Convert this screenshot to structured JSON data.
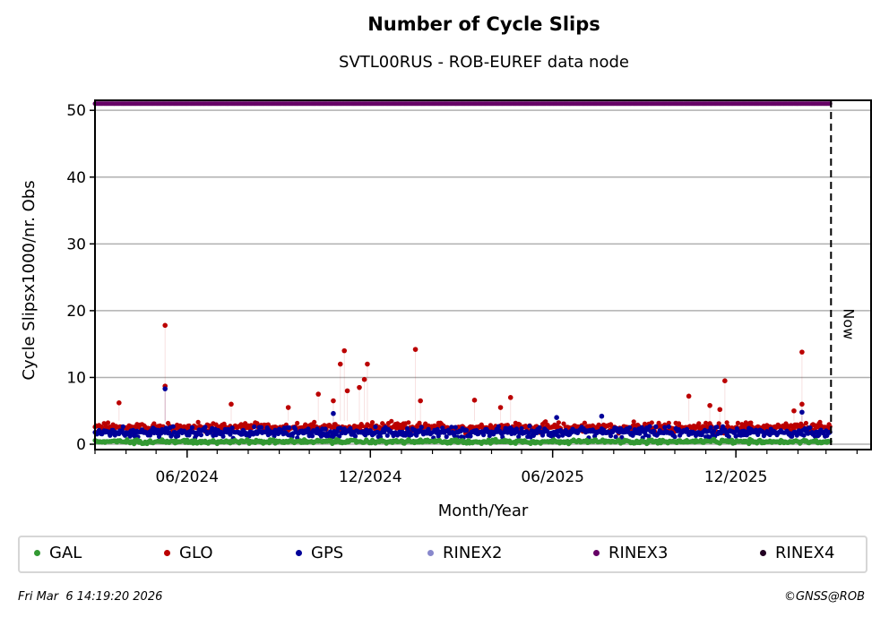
{
  "chart_data": {
    "type": "scatter",
    "title": "Number of Cycle Slips",
    "subtitle": "SVTL00RUS - ROB-EUREF data node",
    "xlabel": "Month/Year",
    "ylabel": "Cycle Slipsx1000/nr. Obs",
    "x_range": [
      "2024-03-01",
      "2026-04-15"
    ],
    "ylim": [
      -0.8,
      51.5
    ],
    "y_ticks": [
      0,
      10,
      20,
      30,
      40,
      50
    ],
    "x_ticks": [
      {
        "date": "2024-06-01",
        "label": "06/2024"
      },
      {
        "date": "2024-12-01",
        "label": "12/2024"
      },
      {
        "date": "2025-06-01",
        "label": "06/2025"
      },
      {
        "date": "2025-12-01",
        "label": "12/2025"
      }
    ],
    "grid": "horizontal",
    "legend_placement": "bottom",
    "now_marker": {
      "date": "2026-03-06",
      "label": "Now"
    },
    "series": [
      {
        "name": "GAL",
        "color": "#339933",
        "typical_range": [
          0.0,
          0.8
        ],
        "data_start": "2024-03-01",
        "data_end": "2026-03-05",
        "outliers": []
      },
      {
        "name": "GLO",
        "color": "#bb0000",
        "typical_range": [
          1.5,
          3.5
        ],
        "data_start": "2024-03-01",
        "data_end": "2026-03-05",
        "outliers": [
          {
            "date": "2024-03-25",
            "value": 6.2
          },
          {
            "date": "2024-05-10",
            "value": 17.8
          },
          {
            "date": "2024-05-10",
            "value": 8.7
          },
          {
            "date": "2024-07-15",
            "value": 6.0
          },
          {
            "date": "2024-09-10",
            "value": 5.5
          },
          {
            "date": "2024-10-10",
            "value": 7.5
          },
          {
            "date": "2024-10-25",
            "value": 6.5
          },
          {
            "date": "2024-11-01",
            "value": 12.0
          },
          {
            "date": "2024-11-05",
            "value": 14.0
          },
          {
            "date": "2024-11-08",
            "value": 8.0
          },
          {
            "date": "2024-11-20",
            "value": 8.5
          },
          {
            "date": "2024-11-28",
            "value": 12.0
          },
          {
            "date": "2024-11-25",
            "value": 9.7
          },
          {
            "date": "2025-01-15",
            "value": 14.2
          },
          {
            "date": "2025-01-20",
            "value": 6.5
          },
          {
            "date": "2025-03-15",
            "value": 6.6
          },
          {
            "date": "2025-04-20",
            "value": 7.0
          },
          {
            "date": "2025-04-10",
            "value": 5.5
          },
          {
            "date": "2025-10-15",
            "value": 7.2
          },
          {
            "date": "2025-11-05",
            "value": 5.8
          },
          {
            "date": "2025-11-20",
            "value": 9.5
          },
          {
            "date": "2025-11-15",
            "value": 5.2
          },
          {
            "date": "2026-02-05",
            "value": 13.8
          },
          {
            "date": "2026-02-05",
            "value": 6.0
          },
          {
            "date": "2026-01-28",
            "value": 5.0
          }
        ]
      },
      {
        "name": "GPS",
        "color": "#000099",
        "typical_range": [
          0.8,
          2.8
        ],
        "data_start": "2024-03-01",
        "data_end": "2026-03-05",
        "outliers": [
          {
            "date": "2024-05-10",
            "value": 8.3
          },
          {
            "date": "2024-10-25",
            "value": 4.6
          },
          {
            "date": "2025-06-05",
            "value": 4.0
          },
          {
            "date": "2025-07-20",
            "value": 4.2
          },
          {
            "date": "2026-02-05",
            "value": 4.8
          }
        ]
      },
      {
        "name": "RINEX2",
        "color": "#8888cc",
        "typical_range": null,
        "outliers": []
      },
      {
        "name": "RINEX3",
        "color": "#660066",
        "constant_value": 51,
        "data_start": "2024-03-01",
        "data_end": "2026-03-05",
        "outliers": []
      },
      {
        "name": "RINEX4",
        "color": "#220022",
        "typical_range": null,
        "outliers": []
      }
    ]
  },
  "legend": {
    "items": [
      {
        "label": "GAL",
        "color": "#339933"
      },
      {
        "label": "GLO",
        "color": "#bb0000"
      },
      {
        "label": "GPS",
        "color": "#000099"
      },
      {
        "label": "RINEX2",
        "color": "#8888cc"
      },
      {
        "label": "RINEX3",
        "color": "#660066"
      },
      {
        "label": "RINEX4",
        "color": "#220022"
      }
    ]
  },
  "footer": {
    "timestamp": "Fri Mar  6 14:19:20 2026",
    "credit": "©GNSS@ROB"
  }
}
